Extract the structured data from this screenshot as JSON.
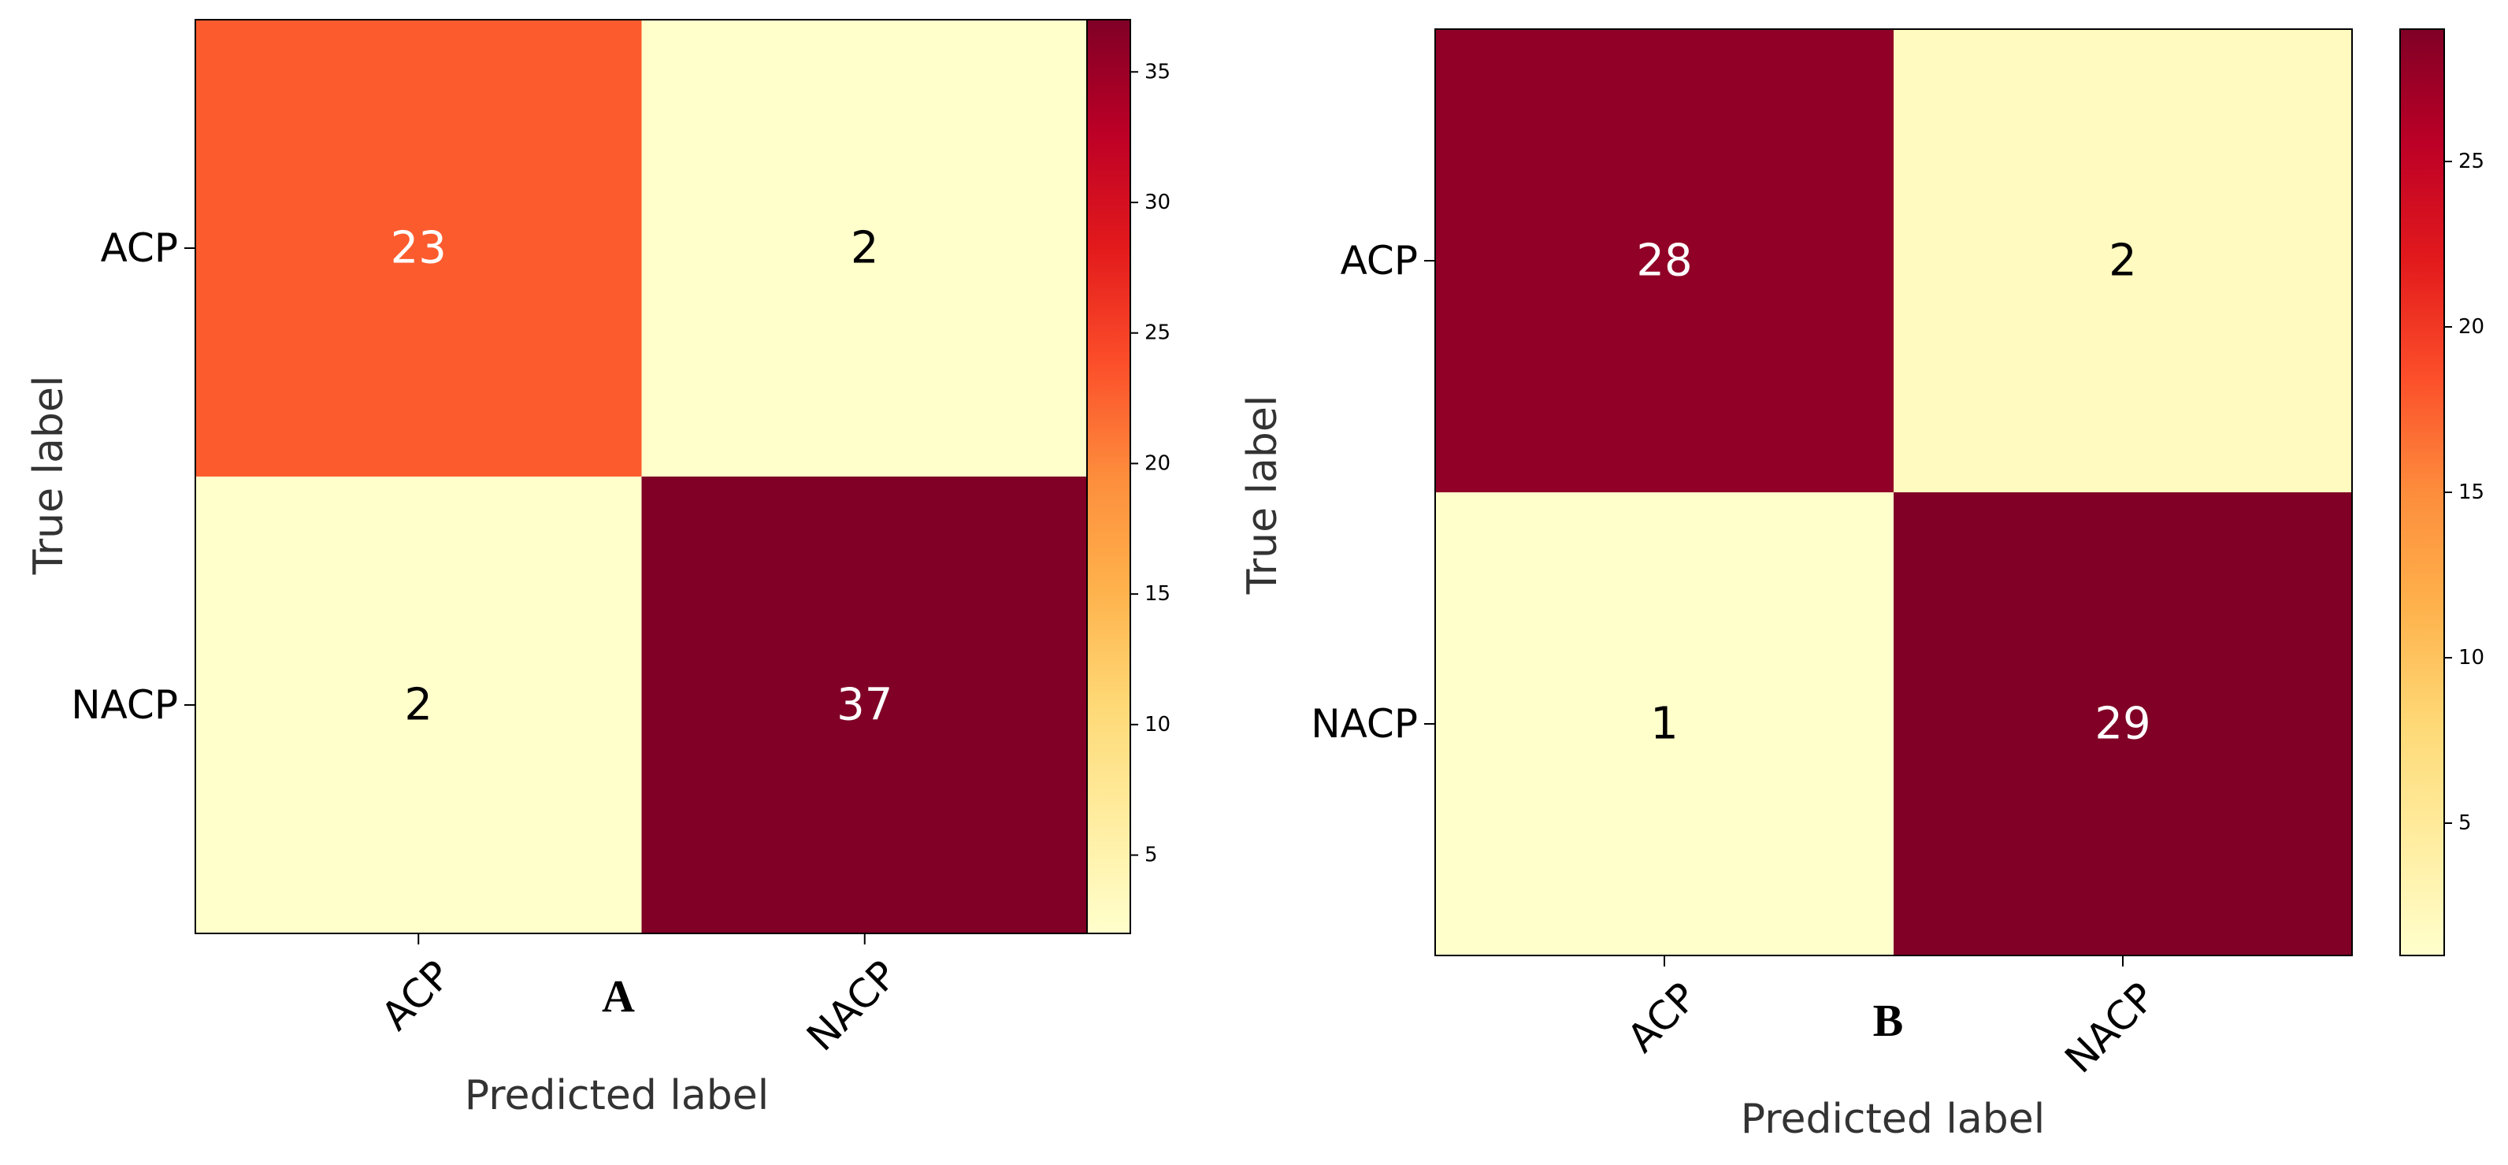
{
  "chart_data": [
    {
      "type": "heatmap",
      "panel_label": "A",
      "xlabel": "Predicted label",
      "ylabel": "True label",
      "x_categories": [
        "ACP",
        "NACP"
      ],
      "y_categories": [
        "ACP",
        "NACP"
      ],
      "matrix": [
        [
          23,
          2
        ],
        [
          2,
          37
        ]
      ],
      "colorscale": "YlOrRd",
      "color_range": [
        2,
        37
      ],
      "colorbar_ticks": [
        5,
        10,
        15,
        20,
        25,
        30,
        35
      ]
    },
    {
      "type": "heatmap",
      "panel_label": "B",
      "xlabel": "Predicted label",
      "ylabel": "True label",
      "x_categories": [
        "ACP",
        "NACP"
      ],
      "y_categories": [
        "ACP",
        "NACP"
      ],
      "matrix": [
        [
          28,
          2
        ],
        [
          1,
          29
        ]
      ],
      "colorscale": "YlOrRd",
      "color_range": [
        1,
        29
      ],
      "colorbar_ticks": [
        5,
        10,
        15,
        20,
        25
      ]
    }
  ],
  "colors": {
    "text_on_dark": "#ffffff",
    "text_on_light": "#000000",
    "frame": "#000000",
    "axis_label": "#333333"
  }
}
